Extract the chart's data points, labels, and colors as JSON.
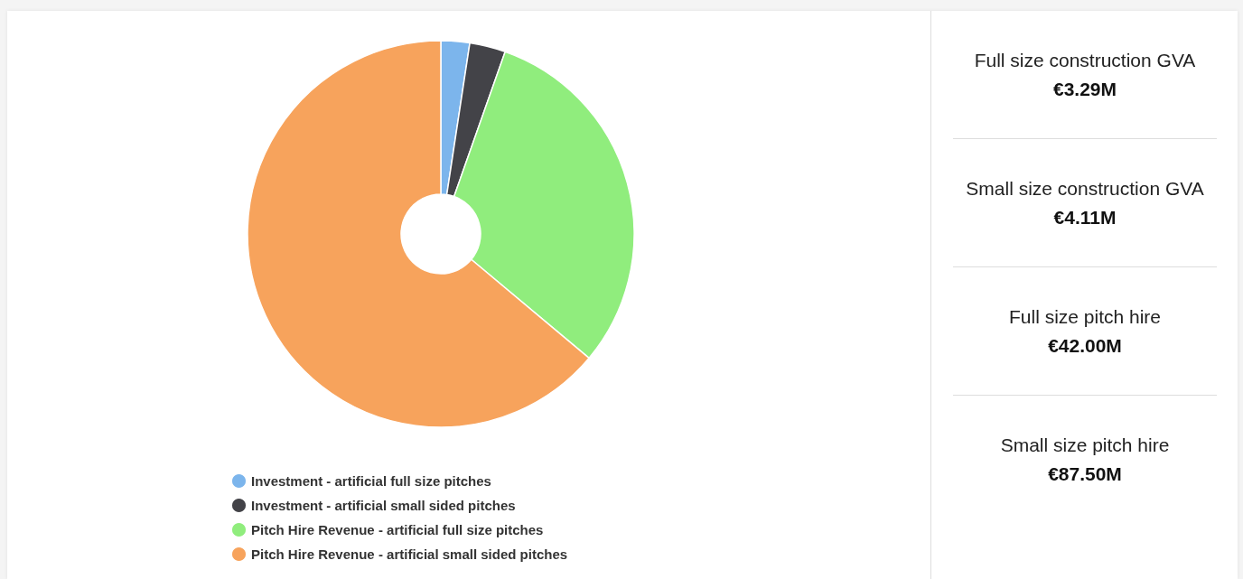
{
  "chart_data": [
    {
      "type": "donut",
      "categories": [
        "Investment - artificial full size pitches",
        "Investment - artificial small sided pitches",
        "Pitch Hire Revenue - artificial full size pitches",
        "Pitch Hire Revenue - artificial small sided pitches"
      ],
      "values": [
        2.4,
        3.0,
        30.7,
        63.9
      ],
      "colors": [
        "#7cb5ec",
        "#434348",
        "#90ed7d",
        "#f7a35c"
      ],
      "legend": "bottom"
    },
    {
      "type": "other",
      "annotations": [
        "Full size construction GVA",
        "€3.29M",
        "Small size construction GVA",
        "€4.11M",
        "Full size pitch hire",
        "€42.00M",
        "Small size pitch hire",
        "€87.50M"
      ]
    }
  ]
}
